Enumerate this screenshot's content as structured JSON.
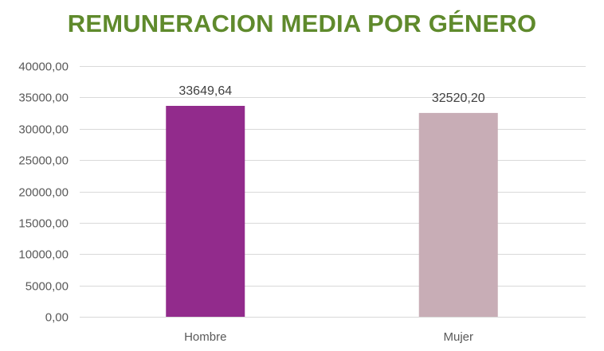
{
  "chart_data": {
    "type": "bar",
    "title": "REMUNERACION MEDIA POR GÉNERO",
    "xlabel": "",
    "ylabel": "",
    "categories": [
      "Hombre",
      "Mujer"
    ],
    "values": [
      33649.64,
      32520.2
    ],
    "value_labels": [
      "33649,64",
      "32520,20"
    ],
    "bar_colors": [
      "#922b8c",
      "#c8adb6"
    ],
    "title_color": "#5f8a2c",
    "ylim": [
      0,
      40000
    ],
    "yticks": [
      0,
      5000,
      10000,
      15000,
      20000,
      25000,
      30000,
      35000,
      40000
    ],
    "ytick_labels": [
      "0,00",
      "5000,00",
      "10000,00",
      "15000,00",
      "20000,00",
      "25000,00",
      "30000,00",
      "35000,00",
      "40000,00"
    ],
    "grid": true,
    "legend": "none"
  }
}
